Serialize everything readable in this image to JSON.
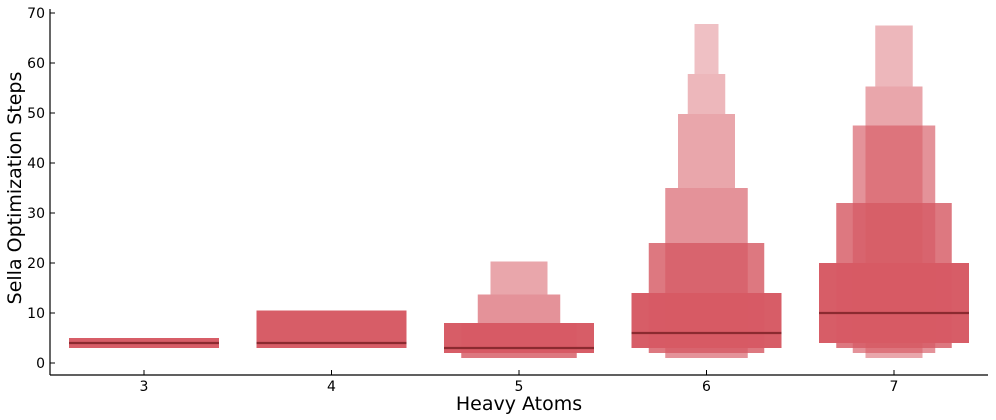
{
  "chart_data": {
    "type": "boxen",
    "xlabel": "Heavy Atoms",
    "ylabel": "Sella Optimization Steps",
    "ylim": [
      -2,
      70
    ],
    "y_ticks": [
      0,
      10,
      20,
      30,
      40,
      50,
      60,
      70
    ],
    "categories": [
      "3",
      "4",
      "5",
      "6",
      "7"
    ],
    "box_color": "#d65a64",
    "median_color": "#8b2a30",
    "grid": false,
    "legend": "none",
    "boxes": [
      {
        "category": "3",
        "median": 4,
        "levels": [
          {
            "lo": 3,
            "hi": 5
          }
        ]
      },
      {
        "category": "4",
        "median": 4,
        "levels": [
          {
            "lo": 3,
            "hi": 10.5
          }
        ]
      },
      {
        "category": "5",
        "median": 3,
        "levels": [
          {
            "lo": 2,
            "hi": 8
          },
          {
            "lo": 1,
            "hi": 8
          },
          {
            "lo": 8,
            "hi": 13.7
          },
          {
            "lo": 13.7,
            "hi": 20.3
          }
        ]
      },
      {
        "category": "6",
        "median": 6,
        "levels": [
          {
            "lo": 3,
            "hi": 14
          },
          {
            "lo": 2,
            "hi": 24
          },
          {
            "lo": 1,
            "hi": 35
          },
          {
            "lo": 35,
            "hi": 49.8
          },
          {
            "lo": 49.8,
            "hi": 57.8
          },
          {
            "lo": 57.8,
            "hi": 67.8
          }
        ]
      },
      {
        "category": "7",
        "median": 10,
        "levels": [
          {
            "lo": 4,
            "hi": 20
          },
          {
            "lo": 3,
            "hi": 32
          },
          {
            "lo": 2,
            "hi": 47.5
          },
          {
            "lo": 1,
            "hi": 55.3
          },
          {
            "lo": 55.3,
            "hi": 67.5
          }
        ]
      }
    ]
  }
}
